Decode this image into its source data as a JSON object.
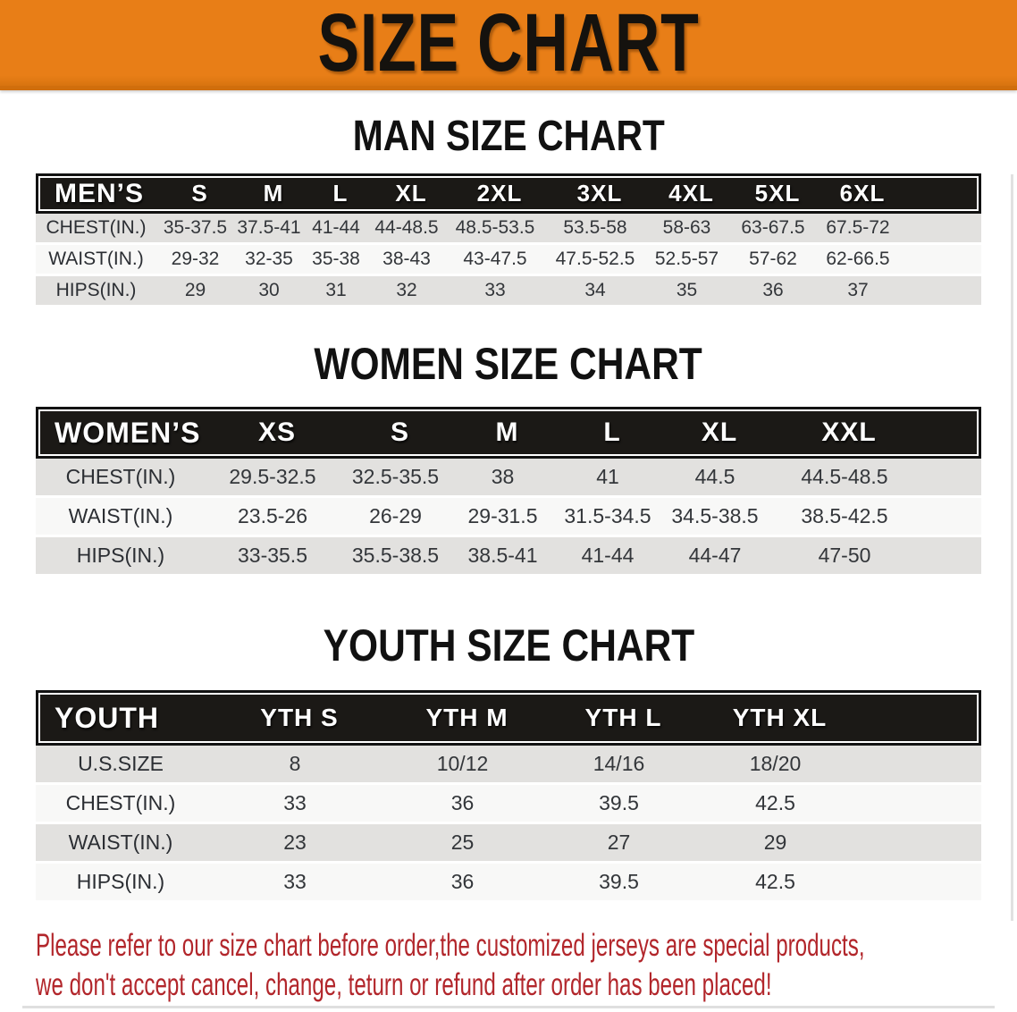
{
  "banner": {
    "title": "SIZE CHART"
  },
  "man_section": {
    "title": "MAN SIZE CHART"
  },
  "women_section": {
    "title": "WOMEN SIZE CHART"
  },
  "youth_section": {
    "title": "YOUTH SIZE CHART"
  },
  "tables": [
    {
      "id": "mens",
      "label": "MEN’S",
      "header": [
        "MEN’S",
        "S",
        "M",
        "L",
        "XL",
        "2XL",
        "3XL",
        "4XL",
        "5XL",
        "6XL"
      ],
      "rows": [
        [
          "CHEST(IN.)",
          "35-37.5",
          "37.5-41",
          "41-44",
          "44-48.5",
          "48.5-53.5",
          "53.5-58",
          "58-63",
          "63-67.5",
          "67.5-72"
        ],
        [
          "WAIST(IN.)",
          "29-32",
          "32-35",
          "35-38",
          "38-43",
          "43-47.5",
          "47.5-52.5",
          "52.5-57",
          "57-62",
          "62-66.5"
        ],
        [
          "HIPS(IN.)",
          "29",
          "30",
          "31",
          "32",
          "33",
          "34",
          "35",
          "36",
          "37"
        ]
      ]
    },
    {
      "id": "womens",
      "label": "WOMEN’S",
      "header": [
        "WOMEN’S",
        "XS",
        "S",
        "M",
        "L",
        "XL",
        "XXL"
      ],
      "rows": [
        [
          "CHEST(IN.)",
          "29.5-32.5",
          "32.5-35.5",
          "38",
          "41",
          "44.5",
          "44.5-48.5"
        ],
        [
          "WAIST(IN.)",
          "23.5-26",
          "26-29",
          "29-31.5",
          "31.5-34.5",
          "34.5-38.5",
          "38.5-42.5"
        ],
        [
          "HIPS(IN.)",
          "33-35.5",
          "35.5-38.5",
          "38.5-41",
          "41-44",
          "44-47",
          "47-50"
        ]
      ]
    },
    {
      "id": "youth",
      "label": "YOUTH",
      "header": [
        "YOUTH",
        "YTH S",
        "YTH M",
        "YTH L",
        "YTH XL"
      ],
      "rows": [
        [
          "U.S.SIZE",
          "8",
          "10/12",
          "14/16",
          "18/20"
        ],
        [
          "CHEST(IN.)",
          "33",
          "36",
          "39.5",
          "42.5"
        ],
        [
          "WAIST(IN.)",
          "23",
          "25",
          "27",
          "29"
        ],
        [
          "HIPS(IN.)",
          "33",
          "36",
          "39.5",
          "42.5"
        ]
      ]
    }
  ],
  "disclaimer": {
    "line1": "Please refer to our size chart before order,the customized jerseys are special products,",
    "line2": "we don't accept cancel, change, teturn or refund after order has been placed!"
  },
  "colors": {
    "banner_bg": "#E87E17",
    "header_bg": "#1B1916",
    "header_text": "#FFFFFF",
    "row_gray": "#E2E1DF",
    "row_white": "#F8F8F7",
    "body_text": "#33363A",
    "title_color": "#111111",
    "disclaimer_red": "#B2262B"
  }
}
